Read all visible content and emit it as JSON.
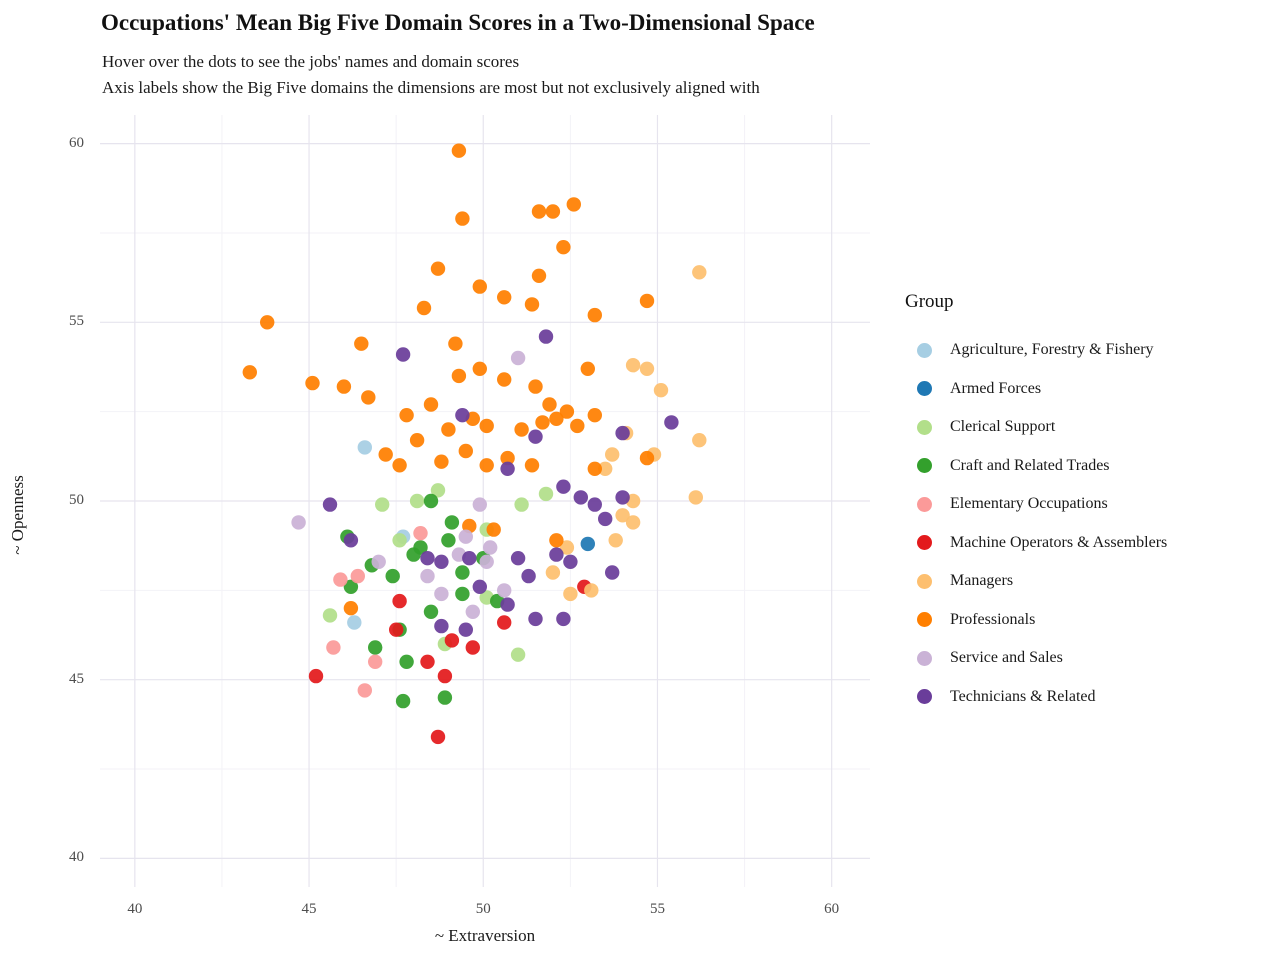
{
  "title": "Occupations' Mean Big Five Domain Scores in a Two-Dimensional Space",
  "subtitle_line1": "Hover over the dots to see the jobs' names and domain scores",
  "subtitle_line2": "Axis labels show the Big Five domains the dimensions are most but not exclusively aligned with",
  "chart_data": {
    "type": "scatter",
    "title": "Occupations' Mean Big Five Domain Scores in a Two-Dimensional Space",
    "xlabel": "~ Extraversion",
    "ylabel": "~ Openness",
    "xlim": [
      39.0,
      61.1
    ],
    "ylim": [
      39.2,
      60.8
    ],
    "x_ticks": [
      40,
      45,
      50,
      55,
      60
    ],
    "y_ticks": [
      40,
      45,
      50,
      55,
      60
    ],
    "grid": true,
    "legend_title": "Group",
    "legend_position": "right",
    "colors": {
      "major_grid": "#e6e4ee",
      "minor_grid": "#f3f2f7"
    },
    "series": [
      {
        "name": "Agriculture, Forestry & Fishery",
        "color": "#a6cee3",
        "points": [
          [
            46.6,
            51.5
          ],
          [
            47.7,
            49.0
          ],
          [
            46.3,
            46.6
          ]
        ]
      },
      {
        "name": "Armed Forces",
        "color": "#1f78b4",
        "points": [
          [
            53.0,
            48.8
          ]
        ]
      },
      {
        "name": "Clerical Support",
        "color": "#b2df8a",
        "points": [
          [
            47.1,
            49.9
          ],
          [
            48.1,
            50.0
          ],
          [
            48.7,
            50.3
          ],
          [
            51.8,
            50.2
          ],
          [
            47.6,
            48.9
          ],
          [
            50.1,
            49.2
          ],
          [
            45.6,
            46.8
          ],
          [
            50.1,
            47.3
          ],
          [
            51.0,
            45.7
          ],
          [
            48.9,
            46.0
          ],
          [
            51.1,
            49.9
          ]
        ]
      },
      {
        "name": "Craft and Related Trades",
        "color": "#33a02c",
        "points": [
          [
            48.5,
            50.0
          ],
          [
            46.1,
            49.0
          ],
          [
            46.8,
            48.2
          ],
          [
            46.2,
            47.6
          ],
          [
            47.4,
            47.9
          ],
          [
            48.2,
            48.7
          ],
          [
            49.0,
            48.9
          ],
          [
            49.4,
            48.0
          ],
          [
            48.5,
            46.9
          ],
          [
            47.6,
            46.4
          ],
          [
            46.9,
            45.9
          ],
          [
            47.8,
            45.5
          ],
          [
            48.9,
            44.5
          ],
          [
            47.7,
            44.4
          ],
          [
            50.4,
            47.2
          ],
          [
            49.4,
            47.4
          ],
          [
            48.0,
            48.5
          ],
          [
            49.1,
            49.4
          ],
          [
            50.0,
            48.4
          ]
        ]
      },
      {
        "name": "Elementary Occupations",
        "color": "#fb9a99",
        "points": [
          [
            45.9,
            47.8
          ],
          [
            46.4,
            47.9
          ],
          [
            45.7,
            45.9
          ],
          [
            46.9,
            45.5
          ],
          [
            46.6,
            44.7
          ],
          [
            48.2,
            49.1
          ]
        ]
      },
      {
        "name": "Machine Operators & Assemblers",
        "color": "#e31a1c",
        "points": [
          [
            45.2,
            45.1
          ],
          [
            47.5,
            46.4
          ],
          [
            47.6,
            47.2
          ],
          [
            48.4,
            45.5
          ],
          [
            48.9,
            45.1
          ],
          [
            49.1,
            46.1
          ],
          [
            49.7,
            45.9
          ],
          [
            50.6,
            46.6
          ],
          [
            52.9,
            47.6
          ],
          [
            48.7,
            43.4
          ]
        ]
      },
      {
        "name": "Managers",
        "color": "#fdbf6f",
        "points": [
          [
            56.2,
            56.4
          ],
          [
            54.3,
            53.8
          ],
          [
            54.7,
            53.7
          ],
          [
            55.1,
            53.1
          ],
          [
            56.2,
            51.7
          ],
          [
            54.9,
            51.3
          ],
          [
            54.1,
            51.9
          ],
          [
            53.7,
            51.3
          ],
          [
            53.5,
            50.9
          ],
          [
            56.1,
            50.1
          ],
          [
            54.0,
            49.6
          ],
          [
            54.3,
            49.4
          ],
          [
            53.8,
            48.9
          ],
          [
            52.4,
            48.7
          ],
          [
            52.0,
            48.0
          ],
          [
            53.1,
            47.5
          ],
          [
            52.5,
            47.4
          ],
          [
            54.3,
            50.0
          ]
        ]
      },
      {
        "name": "Professionals",
        "color": "#ff7f00",
        "points": [
          [
            49.3,
            59.8
          ],
          [
            49.4,
            57.9
          ],
          [
            51.6,
            58.1
          ],
          [
            52.0,
            58.1
          ],
          [
            52.6,
            58.3
          ],
          [
            52.3,
            57.1
          ],
          [
            48.7,
            56.5
          ],
          [
            51.6,
            56.3
          ],
          [
            49.9,
            56.0
          ],
          [
            50.6,
            55.7
          ],
          [
            48.3,
            55.4
          ],
          [
            43.8,
            55.0
          ],
          [
            46.5,
            54.4
          ],
          [
            49.2,
            54.4
          ],
          [
            51.4,
            55.5
          ],
          [
            54.7,
            55.6
          ],
          [
            53.2,
            55.2
          ],
          [
            43.3,
            53.6
          ],
          [
            45.1,
            53.3
          ],
          [
            46.0,
            53.2
          ],
          [
            46.7,
            52.9
          ],
          [
            49.3,
            53.5
          ],
          [
            49.9,
            53.7
          ],
          [
            50.6,
            53.4
          ],
          [
            51.5,
            53.2
          ],
          [
            51.9,
            52.7
          ],
          [
            52.4,
            52.5
          ],
          [
            53.0,
            53.7
          ],
          [
            47.8,
            52.4
          ],
          [
            48.5,
            52.7
          ],
          [
            49.0,
            52.0
          ],
          [
            49.7,
            52.3
          ],
          [
            50.1,
            52.1
          ],
          [
            51.1,
            52.0
          ],
          [
            51.7,
            52.2
          ],
          [
            52.1,
            52.3
          ],
          [
            52.7,
            52.1
          ],
          [
            53.2,
            52.4
          ],
          [
            47.2,
            51.3
          ],
          [
            47.6,
            51.0
          ],
          [
            48.8,
            51.1
          ],
          [
            49.5,
            51.4
          ],
          [
            50.1,
            51.0
          ],
          [
            50.7,
            51.2
          ],
          [
            51.4,
            51.0
          ],
          [
            53.2,
            50.9
          ],
          [
            54.7,
            51.2
          ],
          [
            48.1,
            51.7
          ],
          [
            49.6,
            49.3
          ],
          [
            50.3,
            49.2
          ],
          [
            52.1,
            48.9
          ],
          [
            46.2,
            47.0
          ]
        ]
      },
      {
        "name": "Service and Sales",
        "color": "#cab2d6",
        "points": [
          [
            44.7,
            49.4
          ],
          [
            51.0,
            54.0
          ],
          [
            49.9,
            49.9
          ],
          [
            49.5,
            49.0
          ],
          [
            50.2,
            48.7
          ],
          [
            48.8,
            47.4
          ],
          [
            49.7,
            46.9
          ],
          [
            50.6,
            47.5
          ],
          [
            48.4,
            47.9
          ],
          [
            47.0,
            48.3
          ],
          [
            49.3,
            48.5
          ],
          [
            50.1,
            48.3
          ]
        ]
      },
      {
        "name": "Technicians & Related",
        "color": "#6a3d9a",
        "points": [
          [
            47.7,
            54.1
          ],
          [
            51.8,
            54.6
          ],
          [
            49.4,
            52.4
          ],
          [
            51.5,
            51.8
          ],
          [
            54.0,
            51.9
          ],
          [
            55.4,
            52.2
          ],
          [
            50.7,
            50.9
          ],
          [
            52.3,
            50.4
          ],
          [
            52.8,
            50.1
          ],
          [
            53.2,
            49.9
          ],
          [
            54.0,
            50.1
          ],
          [
            45.6,
            49.9
          ],
          [
            46.2,
            48.9
          ],
          [
            48.4,
            48.4
          ],
          [
            48.8,
            48.3
          ],
          [
            49.6,
            48.4
          ],
          [
            51.0,
            48.4
          ],
          [
            52.1,
            48.5
          ],
          [
            52.5,
            48.3
          ],
          [
            53.5,
            49.5
          ],
          [
            53.7,
            48.0
          ],
          [
            51.3,
            47.9
          ],
          [
            49.9,
            47.6
          ],
          [
            50.7,
            47.1
          ],
          [
            51.5,
            46.7
          ],
          [
            52.3,
            46.7
          ],
          [
            48.8,
            46.5
          ],
          [
            49.5,
            46.4
          ]
        ]
      }
    ]
  }
}
